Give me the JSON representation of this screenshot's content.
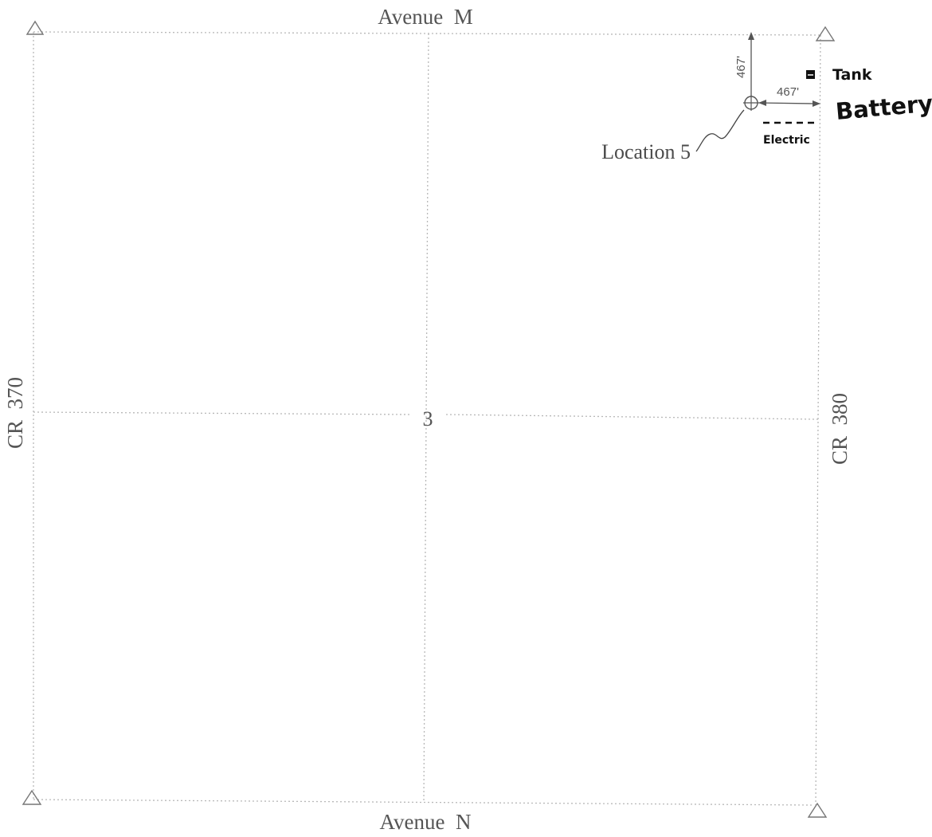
{
  "roads": {
    "north": "Avenue  M",
    "south": "Avenue  N",
    "west": "CR  370",
    "east": "CR  380"
  },
  "section_number": "3",
  "well": {
    "label": "Location 5",
    "offset_north": "467'",
    "offset_east": "467'"
  },
  "annotations": {
    "tank": "Tank",
    "battery": "Battery",
    "electric": "Electric"
  },
  "icons": [
    "survey-corner-triangle-icon",
    "well-location-icon",
    "tank-square-icon"
  ]
}
